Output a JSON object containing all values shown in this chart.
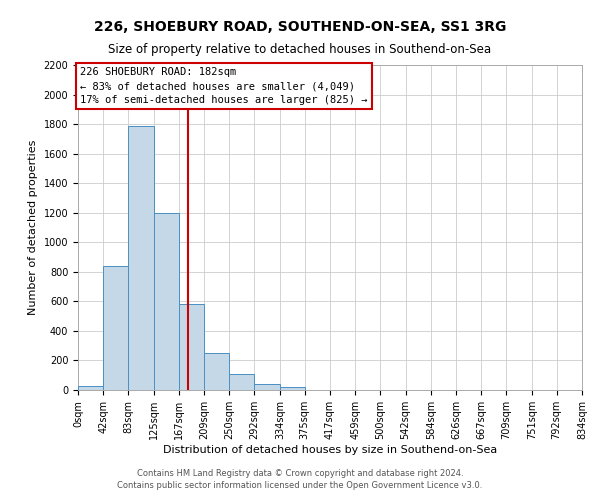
{
  "title": "226, SHOEBURY ROAD, SOUTHEND-ON-SEA, SS1 3RG",
  "subtitle": "Size of property relative to detached houses in Southend-on-Sea",
  "xlabel": "Distribution of detached houses by size in Southend-on-Sea",
  "ylabel": "Number of detached properties",
  "footnote1": "Contains HM Land Registry data © Crown copyright and database right 2024.",
  "footnote2": "Contains public sector information licensed under the Open Government Licence v3.0.",
  "bin_edges": [
    0,
    42,
    83,
    125,
    167,
    209,
    250,
    292,
    334,
    375,
    417,
    459,
    500,
    542,
    584,
    626,
    667,
    709,
    751,
    792,
    834
  ],
  "bin_labels": [
    "0sqm",
    "42sqm",
    "83sqm",
    "125sqm",
    "167sqm",
    "209sqm",
    "250sqm",
    "292sqm",
    "334sqm",
    "375sqm",
    "417sqm",
    "459sqm",
    "500sqm",
    "542sqm",
    "584sqm",
    "626sqm",
    "667sqm",
    "709sqm",
    "751sqm",
    "792sqm",
    "834sqm"
  ],
  "bar_heights": [
    25,
    840,
    1790,
    1200,
    580,
    250,
    110,
    40,
    20,
    0,
    0,
    0,
    0,
    0,
    0,
    0,
    0,
    0,
    0,
    0
  ],
  "bar_color": "#c5d8e8",
  "bar_edge_color": "#4a90c4",
  "property_line_x": 182,
  "property_line_color": "#cc0000",
  "ylim": [
    0,
    2200
  ],
  "yticks": [
    0,
    200,
    400,
    600,
    800,
    1000,
    1200,
    1400,
    1600,
    1800,
    2000,
    2200
  ],
  "annotation_title": "226 SHOEBURY ROAD: 182sqm",
  "annotation_line1": "← 83% of detached houses are smaller (4,049)",
  "annotation_line2": "17% of semi-detached houses are larger (825) →",
  "annotation_box_color": "#ffffff",
  "annotation_border_color": "#cc0000",
  "grid_color": "#cccccc",
  "background_color": "#ffffff",
  "title_fontsize": 10,
  "subtitle_fontsize": 8.5,
  "axis_label_fontsize": 8,
  "tick_fontsize": 7,
  "annotation_fontsize": 7.5,
  "footnote_fontsize": 6
}
